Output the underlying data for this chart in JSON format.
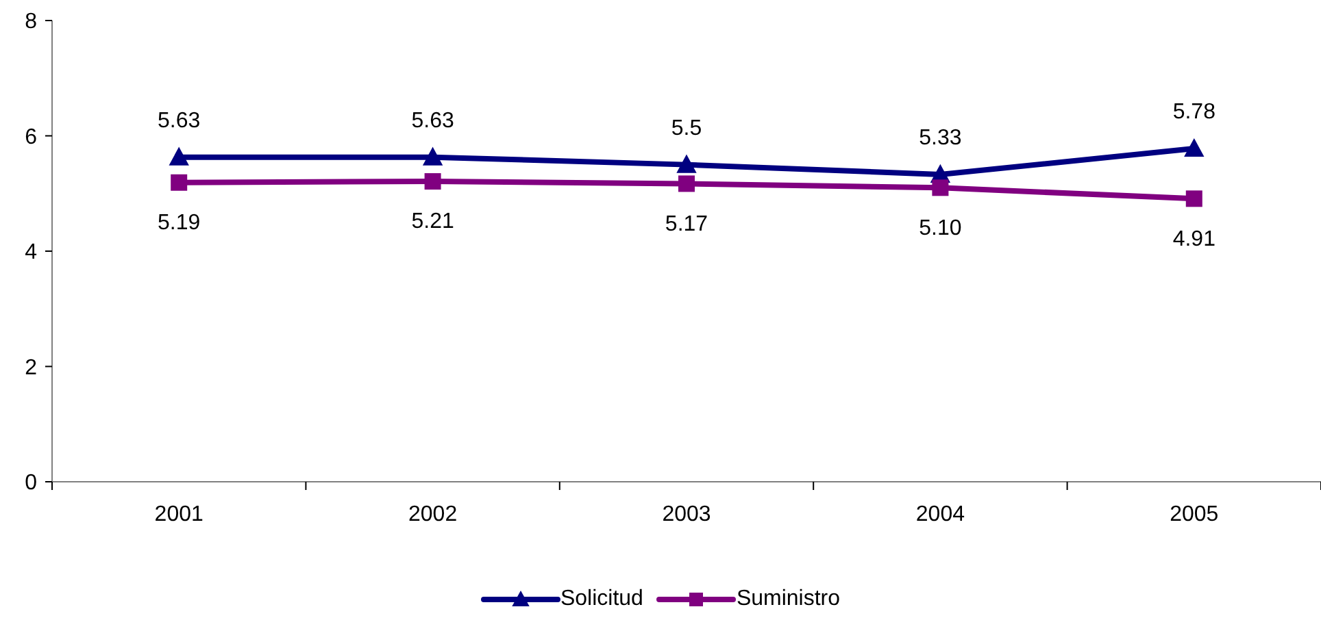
{
  "chart_data": {
    "type": "line",
    "categories": [
      "2001",
      "2002",
      "2003",
      "2004",
      "2005"
    ],
    "series": [
      {
        "name": "Solicitud",
        "color": "#000080",
        "marker": "triangle",
        "values": [
          5.63,
          5.63,
          5.5,
          5.33,
          5.78
        ],
        "value_labels": [
          "5.63",
          "5.63",
          "5.5",
          "5.33",
          "5.78"
        ]
      },
      {
        "name": "Suministro",
        "color": "#800080",
        "marker": "square",
        "values": [
          5.19,
          5.21,
          5.17,
          5.1,
          4.91
        ],
        "value_labels": [
          "5.19",
          "5.21",
          "5.17",
          "5.10",
          "4.91"
        ]
      }
    ],
    "ylim": [
      0,
      8
    ],
    "yticks": [
      0,
      2,
      4,
      6,
      8
    ],
    "legend": "bottom"
  }
}
